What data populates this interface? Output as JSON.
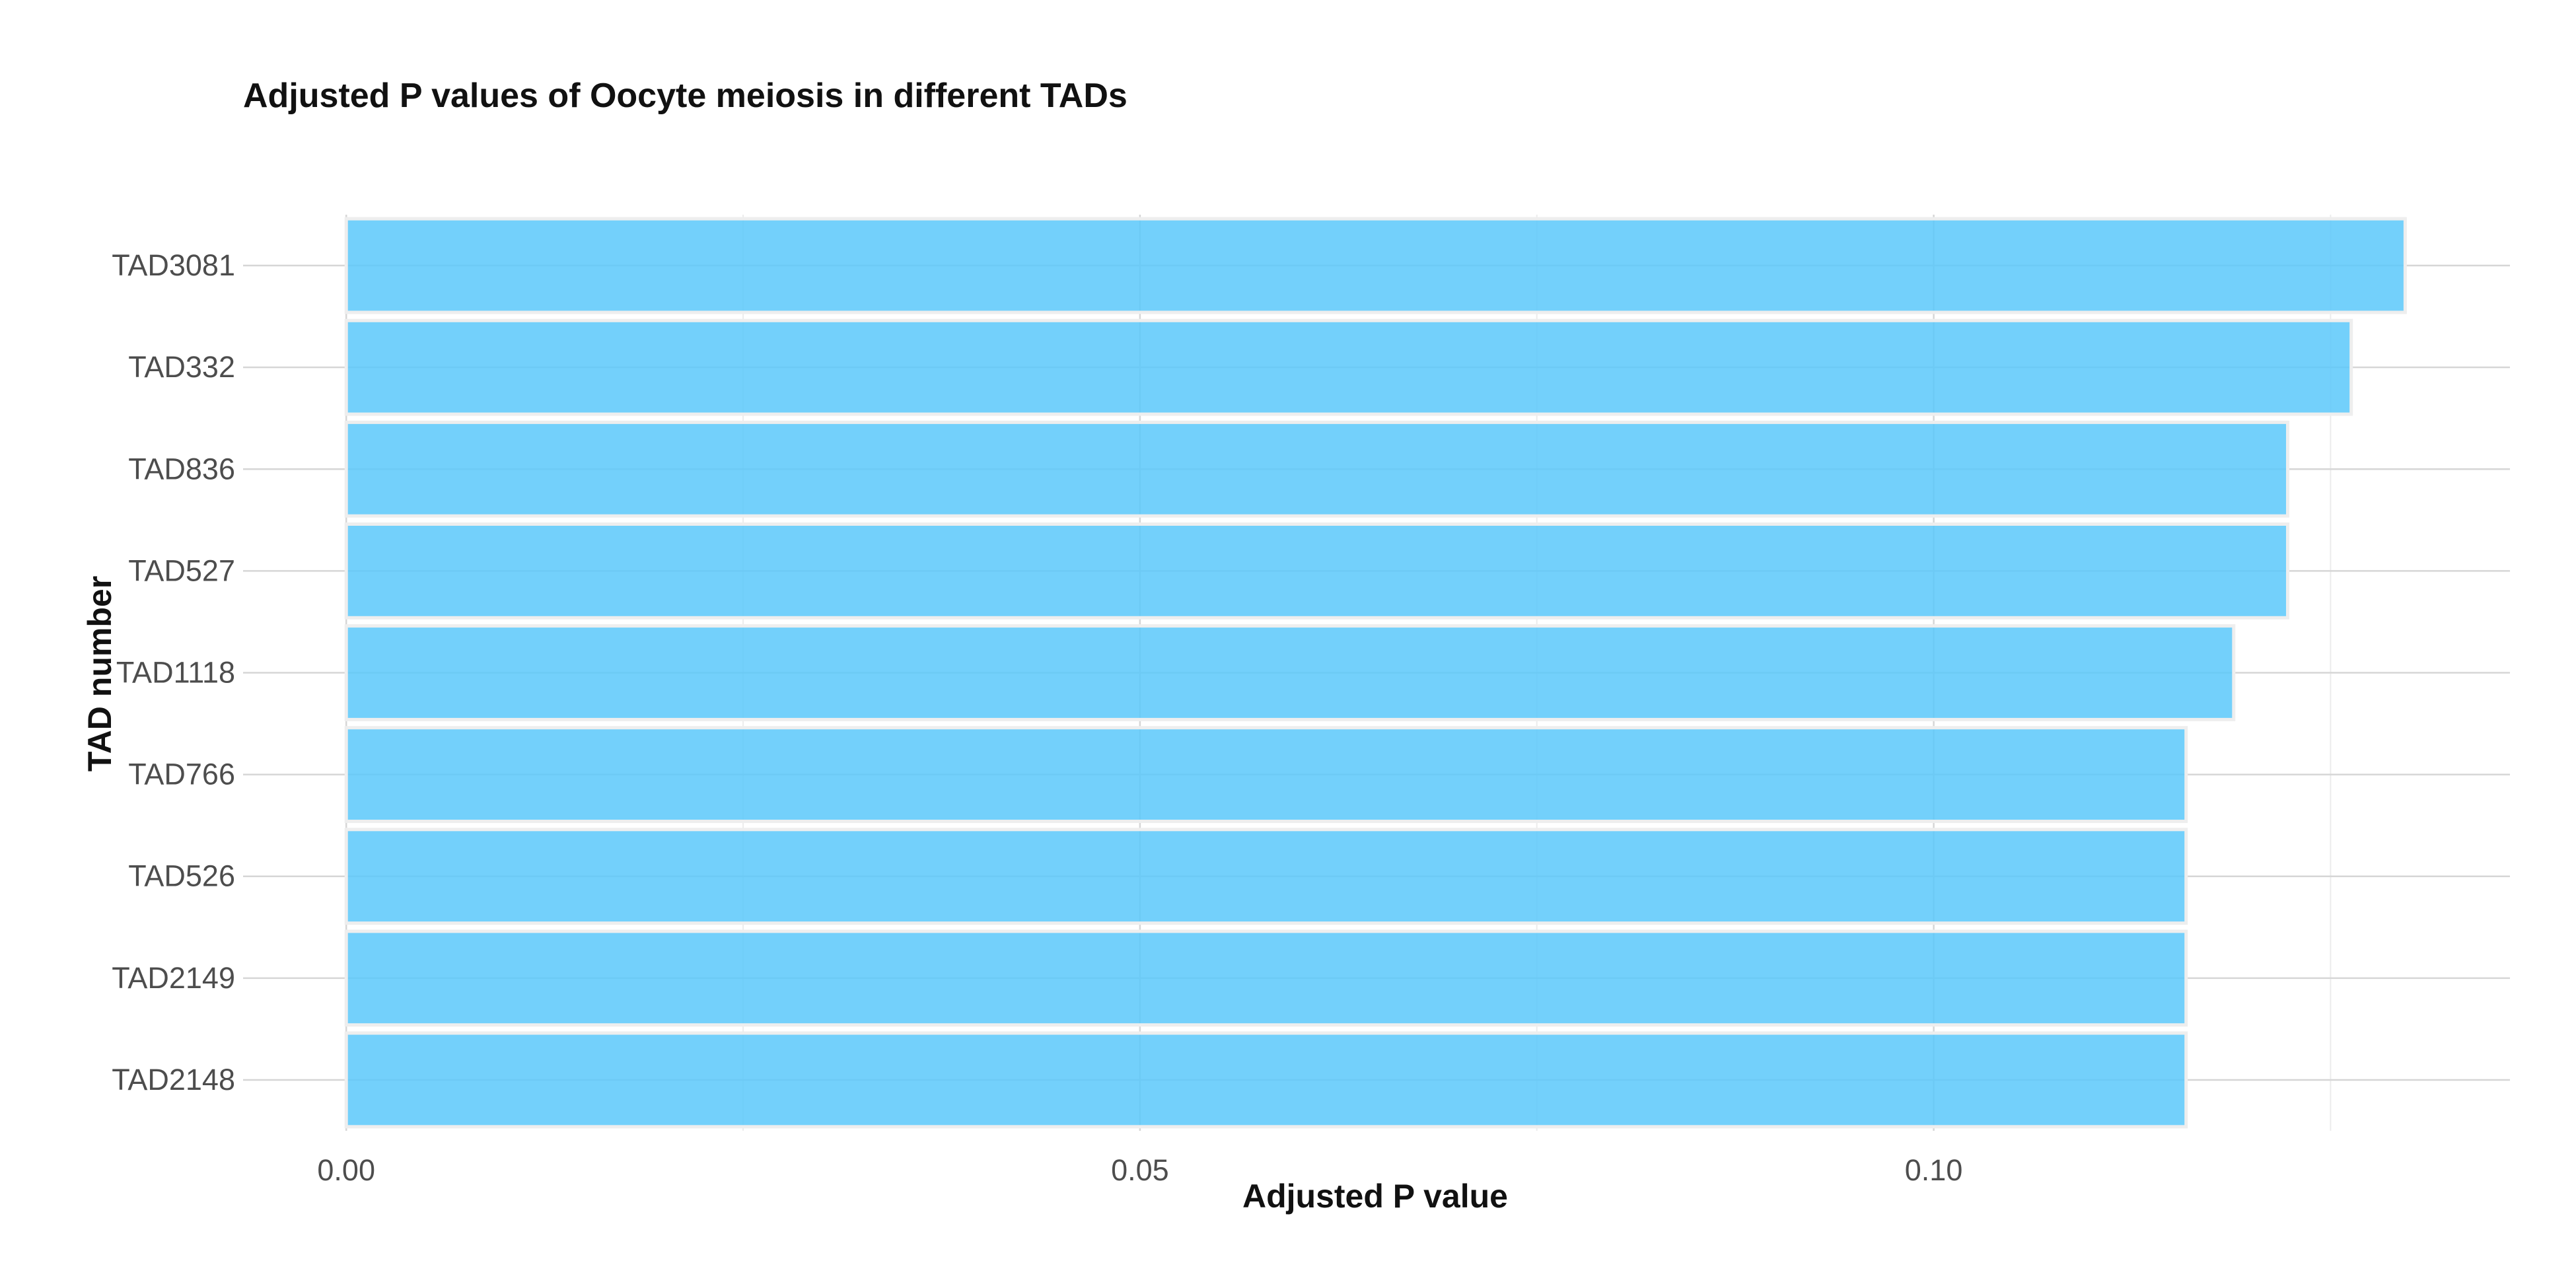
{
  "chart_data": {
    "type": "bar",
    "orientation": "horizontal",
    "title": "Adjusted P values of Oocyte meiosis in different TADs",
    "xlabel": "Adjusted P value",
    "ylabel": "TAD number",
    "categories": [
      "TAD3081",
      "TAD332",
      "TAD836",
      "TAD527",
      "TAD1118",
      "TAD766",
      "TAD526",
      "TAD2149",
      "TAD2148"
    ],
    "values": [
      0.1297,
      0.1263,
      0.1223,
      0.1223,
      0.1189,
      0.1159,
      0.1159,
      0.1159,
      0.1159
    ],
    "xlim": [
      -0.0065,
      0.1363
    ],
    "xticks": [
      0.0,
      0.05,
      0.1
    ],
    "xtick_labels": [
      "0.00",
      "0.05",
      "0.10"
    ],
    "grid": true,
    "legend": "none",
    "bar_color": "#5ac8fa"
  }
}
